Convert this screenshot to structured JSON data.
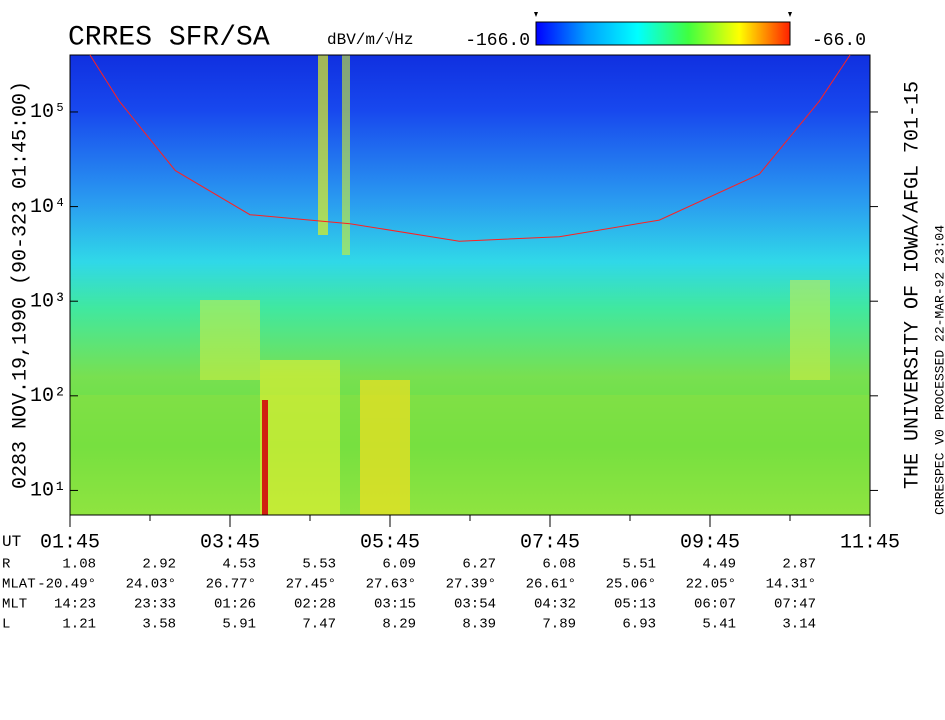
{
  "chart_data": {
    "type": "spectrogram",
    "title": "CRRES SFR/SA",
    "colorbar": {
      "units": "dBV/m/√Hz",
      "clim": [
        {
          "value": -166,
          "label": "-166.0"
        },
        {
          "value": -66,
          "label": "-66.0"
        }
      ]
    },
    "y_label": "0283  NOV.19,1990  (90-323 01:45:00)",
    "right_label": "THE UNIVERSITY OF IOWA/AFGL 701-15",
    "footer_labels": [
      "CRRESPEC V0",
      "PROCESSED 22-MAR-92  23:04"
    ],
    "log_y": true,
    "ylim": [
      5.5,
      400000
    ],
    "yticks": [
      {
        "value": 10,
        "label": "10¹"
      },
      {
        "value": 100,
        "label": "10²"
      },
      {
        "value": 1000,
        "label": "10³"
      },
      {
        "value": 10000,
        "label": "10⁴"
      },
      {
        "value": 100000,
        "label": "10⁵"
      }
    ],
    "x_label": "UT",
    "xlim": [
      "01:45",
      "11:45"
    ],
    "xticks": [
      "01:45",
      "03:45",
      "05:45",
      "07:45",
      "09:45",
      "11:45"
    ],
    "curve": {
      "color": "#ff2020",
      "x": [
        "02:00",
        "02:22",
        "03:04",
        "04:00",
        "05:15",
        "06:37",
        "07:52",
        "09:07",
        "10:22",
        "11:07",
        "11:30"
      ],
      "values": [
        400000,
        130000,
        24000,
        8200,
        6600,
        4300,
        4800,
        7200,
        22000,
        130000,
        400000
      ]
    },
    "ephemeris": [
      {
        "label": "R",
        "values": [
          "1.08",
          "2.92",
          "4.53",
          "5.53",
          "6.09",
          "6.27",
          "6.08",
          "5.51",
          "4.49",
          "2.87"
        ]
      },
      {
        "label": "MLAT",
        "values": [
          "-20.49°",
          "24.03°",
          "26.77°",
          "27.45°",
          "27.63°",
          "27.39°",
          "26.61°",
          "25.06°",
          "22.05°",
          "14.31°"
        ]
      },
      {
        "label": "MLT",
        "values": [
          "14:23",
          "23:33",
          "01:26",
          "02:28",
          "03:15",
          "03:54",
          "04:32",
          "05:13",
          "06:07",
          "07:47"
        ]
      },
      {
        "label": "L",
        "values": [
          "1.21",
          "3.58",
          "5.91",
          "7.47",
          "8.29",
          "8.39",
          "7.89",
          "6.93",
          "5.41",
          "3.14"
        ]
      }
    ]
  }
}
